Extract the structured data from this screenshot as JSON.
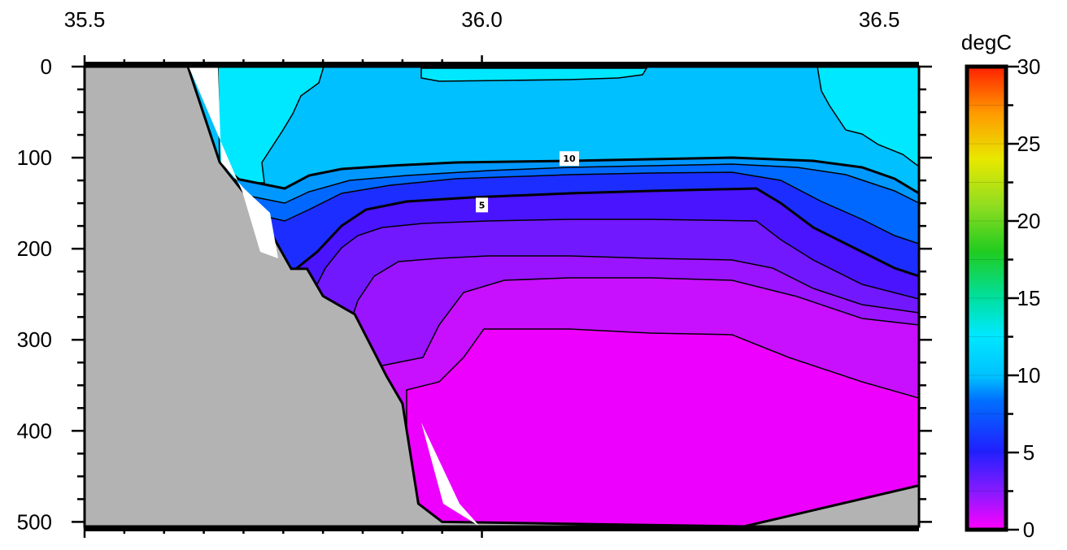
{
  "chart_data": {
    "type": "heatmap",
    "description_type": "filled contour section",
    "x_ticks": [
      35.5,
      36.0,
      36.5
    ],
    "x_tick_labels": [
      "35.5",
      "36.0",
      "36.5"
    ],
    "x_range": [
      35.5,
      36.55
    ],
    "y_ticks": [
      0,
      100,
      200,
      300,
      400,
      500
    ],
    "y_tick_labels": [
      "0",
      "100",
      "200",
      "300",
      "400",
      "500"
    ],
    "y_range": [
      0,
      505
    ],
    "y_inverted": true,
    "colorbar": {
      "title": "degC",
      "range": [
        0,
        30
      ],
      "ticks": [
        0,
        5,
        10,
        15,
        20,
        25,
        30
      ],
      "tick_labels": [
        "0",
        "5",
        "10",
        "15",
        "20",
        "25",
        "30"
      ]
    },
    "contour_labels": [
      {
        "value": 10,
        "text": "10",
        "lon": 36.11,
        "depth": 101
      },
      {
        "value": 5,
        "text": "5",
        "lon": 36.0,
        "depth": 152
      }
    ],
    "bathymetry": [
      [
        35.5,
        0
      ],
      [
        35.63,
        0
      ],
      [
        35.67,
        105
      ],
      [
        35.72,
        160
      ],
      [
        35.76,
        222
      ],
      [
        35.78,
        222
      ],
      [
        35.8,
        252
      ],
      [
        35.84,
        272
      ],
      [
        35.88,
        340
      ],
      [
        35.9,
        370
      ],
      [
        35.92,
        480
      ],
      [
        35.95,
        500
      ],
      [
        36.33,
        505
      ],
      [
        36.55,
        460
      ],
      [
        36.55,
        505
      ],
      [
        35.5,
        505
      ]
    ],
    "temperature_bands": [
      {
        "value": 12,
        "color": "#00e8ff"
      },
      {
        "value": 11,
        "color": "#00c0ff"
      },
      {
        "value": 9.5,
        "color": "#0098ff"
      },
      {
        "value": 8,
        "color": "#0068ff"
      },
      {
        "value": 6,
        "color": "#1c2eff"
      },
      {
        "value": 4.5,
        "color": "#4a14ff"
      },
      {
        "value": 3.5,
        "color": "#7218ff"
      },
      {
        "value": 2.5,
        "color": "#9a14ff"
      },
      {
        "value": 1.5,
        "color": "#c810ff"
      },
      {
        "value": 0.5,
        "color": "#ee00ff"
      }
    ],
    "colors": {
      "land": "#b3b3b3",
      "frame": "#000000"
    }
  }
}
